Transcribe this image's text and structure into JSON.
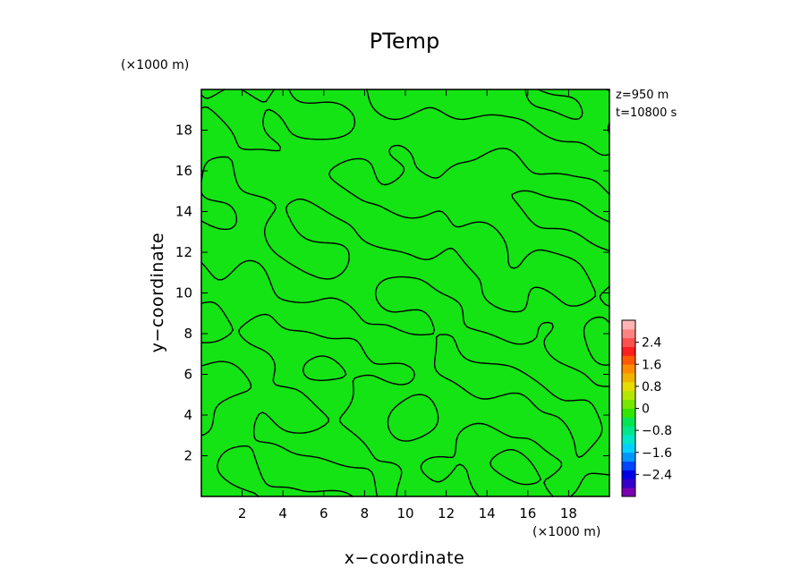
{
  "chart_data": {
    "type": "heatmap",
    "title": "PTemp",
    "xlabel": "x−coordinate",
    "ylabel": "y−coordinate",
    "x_unit": "(×1000 m)",
    "y_unit": "(×1000 m)",
    "xlim": [
      0,
      20
    ],
    "ylim": [
      0,
      20
    ],
    "x_ticks": [
      "2",
      "4",
      "6",
      "8",
      "10",
      "12",
      "14",
      "16",
      "18"
    ],
    "y_ticks": [
      "2",
      "4",
      "6",
      "8",
      "10",
      "12",
      "14",
      "16",
      "18"
    ],
    "annotations": [
      "z=950 m",
      "t=10800 s"
    ],
    "field_value_range": [
      -0.4,
      0.4
    ],
    "contour_interval": 0.4,
    "colorbar": {
      "range": [
        -3.2,
        3.2
      ],
      "tick_labels": [
        "2.4",
        "1.6",
        "0.8",
        "0",
        "−0.8",
        "−1.6",
        "−2.4"
      ],
      "tick_values": [
        2.4,
        1.6,
        0.8,
        0,
        -0.8,
        -1.6,
        -2.4
      ],
      "colors": [
        "#7a00b0",
        "#3500cc",
        "#0000e6",
        "#0046ff",
        "#0096ff",
        "#00d2ff",
        "#00e6c8",
        "#00e68c",
        "#00e650",
        "#32e600",
        "#78e600",
        "#b4e600",
        "#e6dc00",
        "#f0b400",
        "#ff8c00",
        "#ff5a00",
        "#ff1e1e",
        "#ff5050",
        "#ff8282",
        "#ffb4b4"
      ]
    },
    "fill_color": "#14e314",
    "contour_color": "#000000"
  }
}
